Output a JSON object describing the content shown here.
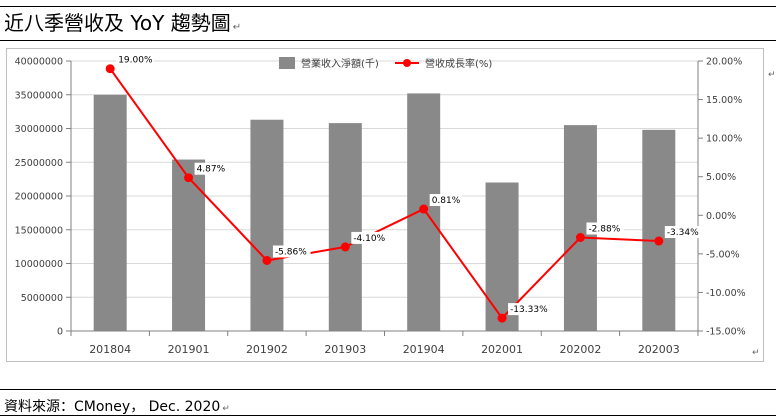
{
  "title": "近八季營收及 YoY 趨勢圖",
  "source": "資料來源：CMoney， Dec. 2020",
  "colors": {
    "bar": "#898989",
    "line": "#ff0000",
    "grid": "#d9d9d9",
    "axis": "#808080"
  },
  "chart_data": {
    "type": "bar",
    "categories": [
      "201804",
      "201901",
      "201902",
      "201903",
      "201904",
      "202001",
      "202002",
      "202003"
    ],
    "series": [
      {
        "name": "營業收入淨額(千)",
        "type": "bar",
        "axis": "left",
        "values": [
          35000000,
          25400000,
          31300000,
          30800000,
          35200000,
          22000000,
          30500000,
          29800000
        ]
      },
      {
        "name": "營收成長率(%)",
        "type": "line",
        "axis": "right",
        "values": [
          19.0,
          4.87,
          -5.86,
          -4.1,
          0.81,
          -13.33,
          -2.88,
          -3.34
        ],
        "labels": [
          "19.00%",
          "4.87%",
          "-5.86%",
          "-4.10%",
          "0.81%",
          "-13.33%",
          "-2.88%",
          "-3.34%"
        ]
      }
    ],
    "y_left": {
      "range": [
        0,
        40000000
      ],
      "ticks": [
        "0",
        "5000000",
        "10000000",
        "15000000",
        "20000000",
        "25000000",
        "30000000",
        "35000000",
        "40000000"
      ]
    },
    "y_right": {
      "range": [
        -15,
        20
      ],
      "ticks": [
        "-15.00%",
        "-10.00%",
        "-5.00%",
        "0.00%",
        "5.00%",
        "10.00%",
        "15.00%",
        "20.00%"
      ]
    },
    "grid": true,
    "legend_position": "top"
  }
}
